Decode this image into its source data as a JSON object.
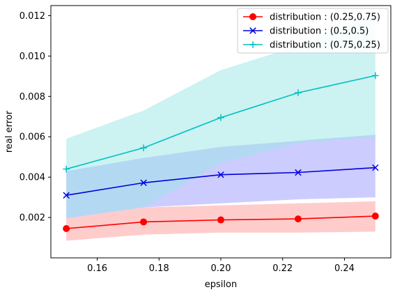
{
  "chart_data": {
    "type": "line",
    "title": "",
    "xlabel": "epsilon",
    "ylabel": "real error",
    "xlim": [
      0.145,
      0.255
    ],
    "ylim": [
      0.0,
      0.0125
    ],
    "xticks": [
      0.16,
      0.18,
      0.2,
      0.22,
      0.24
    ],
    "xtick_labels": [
      "0.16",
      "0.18",
      "0.20",
      "0.22",
      "0.24"
    ],
    "yticks": [
      0.002,
      0.004,
      0.006,
      0.008,
      0.01,
      0.012
    ],
    "ytick_labels": [
      "0.002",
      "0.004",
      "0.006",
      "0.008",
      "0.010",
      "0.012"
    ],
    "grid": false,
    "legend_position": "top-right",
    "x": [
      0.15,
      0.175,
      0.2,
      0.225,
      0.25
    ],
    "series": [
      {
        "name": "distribution : (0.25,0.75)",
        "values": [
          0.00145,
          0.00178,
          0.00188,
          0.00193,
          0.00207
        ],
        "band_low": [
          0.00085,
          0.00115,
          0.00125,
          0.00125,
          0.0013
        ],
        "band_high": [
          0.00195,
          0.0025,
          0.0026,
          0.0027,
          0.0028
        ],
        "color": "#ff0000",
        "band_color": "#ff9999",
        "marker": "circle"
      },
      {
        "name": "distribution : (0.5,0.5)",
        "values": [
          0.0031,
          0.00372,
          0.00412,
          0.00423,
          0.00447
        ],
        "band_low": [
          0.00195,
          0.0025,
          0.0027,
          0.0029,
          0.003
        ],
        "band_high": [
          0.0043,
          0.00495,
          0.0055,
          0.0058,
          0.0061
        ],
        "color": "#0000dd",
        "band_color": "#9999ff",
        "marker": "x"
      },
      {
        "name": "distribution : (0.75,0.25)",
        "values": [
          0.0044,
          0.00545,
          0.00695,
          0.00818,
          0.00903
        ],
        "band_low": [
          0.002,
          0.0025,
          0.0047,
          0.0057,
          0.006
        ],
        "band_high": [
          0.0059,
          0.0073,
          0.0093,
          0.0105,
          0.0121
        ],
        "color": "#00bfbf",
        "band_color": "#99e6e6",
        "marker": "plus"
      }
    ]
  }
}
